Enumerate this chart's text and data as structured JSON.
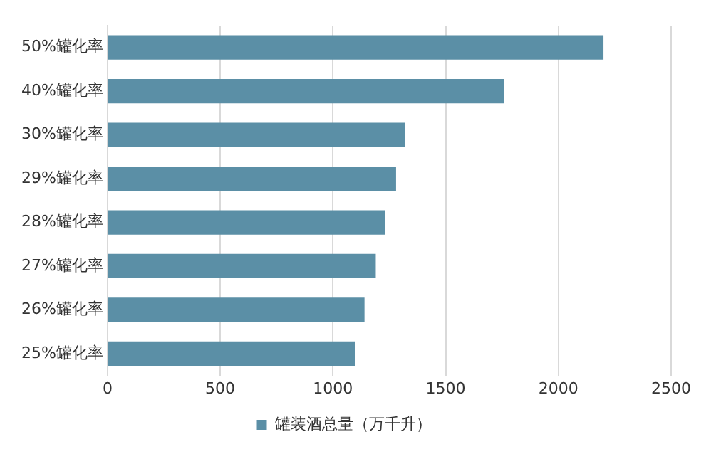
{
  "chart_data": {
    "type": "bar",
    "orientation": "horizontal",
    "categories": [
      "50%罐化率",
      "40%罐化率",
      "30%罐化率",
      "29%罐化率",
      "28%罐化率",
      "27%罐化率",
      "26%罐化率",
      "25%罐化率"
    ],
    "series": [
      {
        "name": "罐装酒总量（万千升）",
        "color": "#5b8fa6",
        "values": [
          2200,
          1760,
          1320,
          1280,
          1230,
          1190,
          1140,
          1100
        ]
      }
    ],
    "xlim": [
      0,
      2500
    ],
    "xticks": [
      0,
      500,
      1000,
      1500,
      2000,
      2500
    ],
    "grid": "x",
    "legend": "bottom"
  }
}
